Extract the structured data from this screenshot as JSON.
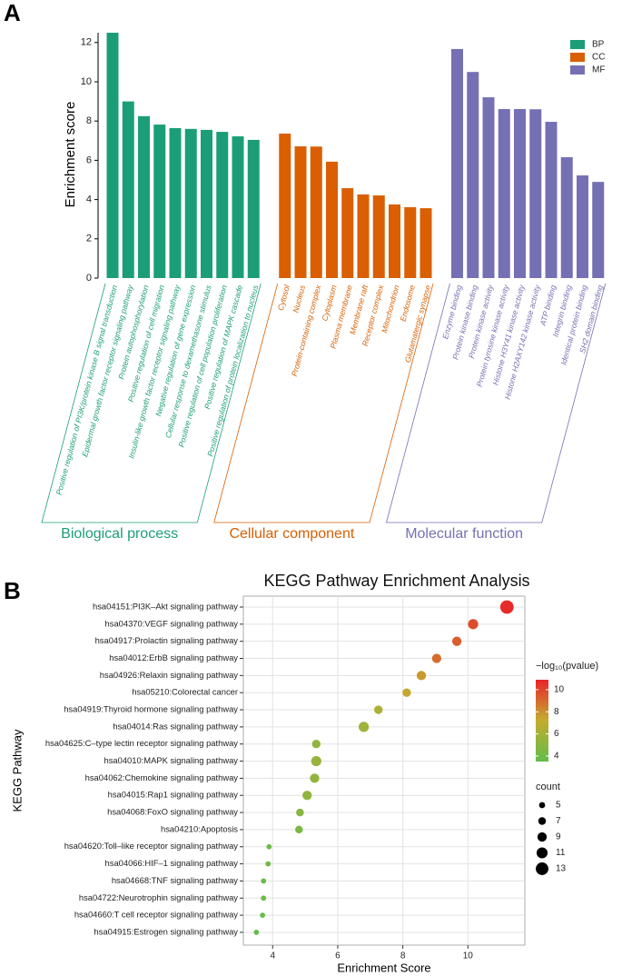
{
  "chart_data": [
    {
      "type": "bar",
      "panel": "A",
      "ylabel": "Enrichment score",
      "ylim": [
        0,
        12.5
      ],
      "yticks": [
        0,
        2,
        4,
        6,
        8,
        10,
        12
      ],
      "legend": "upper right",
      "categories": [
        "Positive regulation of PI3K/protein kinase B signal transduction",
        "Epidermal growth factor receptor signaling pathway",
        "Protein autophosphorylation",
        "Positive regulation of cell migration",
        "Insulin-like growth factor receptor signaling pathway",
        "Negative regulation of gene expression",
        "Cellular response to dexamethasone stimulus",
        "Positive regulation of cell population proliferation",
        "Positive regulation of MAPK cascade",
        "Positive regulation of protein localization to nucleus",
        "Cytosol",
        "Nucleus",
        "Protein-containing complex",
        "Cytoplasm",
        "Plasma membrane",
        "Membrane raft",
        "Receptor complex",
        "Mitochondrion",
        "Endosome",
        "Glutamatergic synapse",
        "Enzyme binding",
        "Protein kinase binding",
        "Protein kinase activity",
        "Protein tyrosine kinase activity",
        "Histone H3Y41 kinase activity",
        "Histone H2AXY142 kinase activity",
        "ATP binding",
        "Integrin binding",
        "Identical protein binding",
        "SH2 domain binding"
      ],
      "series": [
        {
          "name": "BP",
          "color": "#1b9e77",
          "values": [
            12.5,
            9.0,
            8.25,
            7.82,
            7.64,
            7.6,
            7.55,
            7.45,
            7.22,
            7.04,
            null,
            null,
            null,
            null,
            null,
            null,
            null,
            null,
            null,
            null,
            null,
            null,
            null,
            null,
            null,
            null,
            null,
            null,
            null,
            null
          ]
        },
        {
          "name": "CC",
          "color": "#d95f02",
          "values": [
            null,
            null,
            null,
            null,
            null,
            null,
            null,
            null,
            null,
            null,
            7.36,
            6.71,
            6.7,
            5.93,
            4.58,
            4.26,
            4.21,
            3.75,
            3.61,
            3.56,
            null,
            null,
            null,
            null,
            null,
            null,
            null,
            null,
            null,
            null
          ]
        },
        {
          "name": "MF",
          "color": "#7570b3",
          "values": [
            null,
            null,
            null,
            null,
            null,
            null,
            null,
            null,
            null,
            null,
            null,
            null,
            null,
            null,
            null,
            null,
            null,
            null,
            null,
            null,
            11.67,
            10.5,
            9.21,
            8.61,
            8.61,
            8.6,
            7.96,
            6.16,
            5.23,
            4.9
          ]
        }
      ],
      "group_labels": [
        "Biological process",
        "Cellular component",
        "Molecular function"
      ]
    },
    {
      "type": "dot",
      "panel": "B",
      "title": "KEGG Pathway Enrichment Analysis",
      "xlabel": "Enrichment Score",
      "ylabel": "KEGG Pathway",
      "xlim": [
        3.1,
        11.75
      ],
      "xticks": [
        4,
        6,
        8,
        10
      ],
      "grid": true,
      "categories": [
        "hsa04151:PI3K–Akt signaling pathway",
        "hsa04370:VEGF signaling pathway",
        "hsa04917:Prolactin signaling pathway",
        "hsa04012:ErbB signaling pathway",
        "hsa04926:Relaxin signaling pathway",
        "hsa05210:Colorectal cancer",
        "hsa04919:Thyroid hormone signaling pathway",
        "hsa04014:Ras signaling pathway",
        "hsa04625:C–type lectin receptor signaling pathway",
        "hsa04010:MAPK signaling pathway",
        "hsa04062:Chemokine signaling pathway",
        "hsa04015:Rap1 signaling pathway",
        "hsa04068:FoxO signaling pathway",
        "hsa04210:Apoptosis",
        "hsa04620:Toll–like receptor signaling pathway",
        "hsa04066:HIF–1 signaling pathway",
        "hsa04668:TNF signaling pathway",
        "hsa04722:Neurotrophin signaling pathway",
        "hsa04660:T cell receptor signaling pathway",
        "hsa04915:Estrogen signaling pathway"
      ],
      "values": [
        11.2,
        10.16,
        9.66,
        9.04,
        8.57,
        8.12,
        7.25,
        6.8,
        5.34,
        5.34,
        5.29,
        5.06,
        4.84,
        4.81,
        3.89,
        3.86,
        3.72,
        3.72,
        3.69,
        3.5
      ],
      "color_values": [
        10.7,
        9.8,
        9.3,
        8.9,
        7.7,
        7.3,
        6.3,
        5.8,
        5.2,
        5.5,
        5.3,
        5.2,
        4.9,
        4.5,
        4.0,
        3.9,
        3.8,
        3.8,
        3.7,
        3.6
      ],
      "sizes": [
        14,
        10,
        9,
        9,
        9,
        8,
        8,
        10,
        8,
        10,
        9,
        9,
        7,
        7,
        4,
        4,
        4,
        4,
        4,
        4
      ],
      "color_title": "−log₁₀(pvalue)",
      "color_lim": [
        3.5,
        10.9
      ],
      "color_ticks": [
        4,
        6,
        8,
        10
      ],
      "colorscale": [
        "#62bc4b",
        "#c4ac2f",
        "#e8242a"
      ],
      "size_title": "count",
      "size_ticks": [
        5,
        7,
        9,
        11,
        13
      ]
    }
  ]
}
